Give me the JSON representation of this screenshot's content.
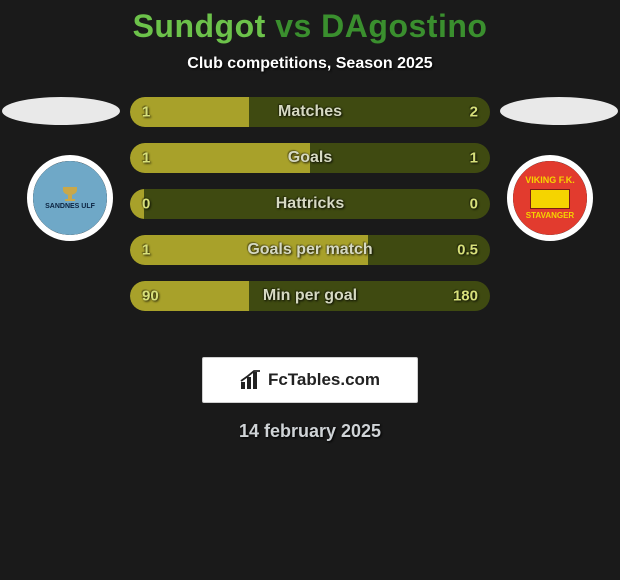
{
  "title": {
    "player1": "Sundgot",
    "vs": "vs",
    "player2": "DAgostino",
    "color1": "#6cc24a",
    "color_vs": "#3a8f2e",
    "color2": "#3a8f2e"
  },
  "subtitle": "Club competitions, Season 2025",
  "text_color": "#ffffff",
  "bar_track_color": "#3f4a11",
  "bar_fill_color": "#a8a12a",
  "bar_value_color": "#d7e07a",
  "bar_label_color": "#d6d9c2",
  "rows": [
    {
      "label": "Matches",
      "left": "1",
      "right": "2",
      "fill_pct": 33
    },
    {
      "label": "Goals",
      "left": "1",
      "right": "1",
      "fill_pct": 50
    },
    {
      "label": "Hattricks",
      "left": "0",
      "right": "0",
      "fill_pct": 4
    },
    {
      "label": "Goals per match",
      "left": "1",
      "right": "0.5",
      "fill_pct": 66
    },
    {
      "label": "Min per goal",
      "left": "90",
      "right": "180",
      "fill_pct": 33
    }
  ],
  "crest_left": {
    "bg": "#6fa8c7",
    "ring": "#ffffff",
    "text": "SANDNES ULF",
    "text_color": "#0b2340",
    "inner_bg": "#d9e8f0"
  },
  "crest_right": {
    "bg": "#e23b2e",
    "ring": "#ffffff",
    "line1": "VIKING F.K.",
    "line2": "STAVANGER",
    "text_color": "#f5d400",
    "flag_bg": "#f5d400"
  },
  "brand": {
    "icon": "bars-icon",
    "text": "FcTables.com",
    "icon_color": "#222222"
  },
  "date": "14 february 2025",
  "date_color": "#cfd3d6"
}
